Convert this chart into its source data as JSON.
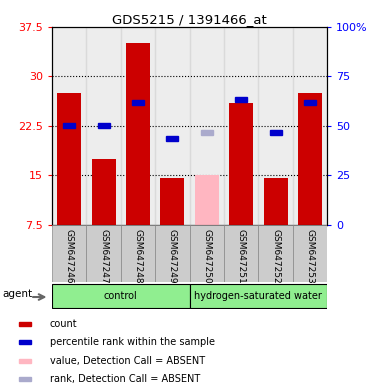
{
  "title": "GDS5215 / 1391466_at",
  "samples": [
    "GSM647246",
    "GSM647247",
    "GSM647248",
    "GSM647249",
    "GSM647250",
    "GSM647251",
    "GSM647252",
    "GSM647253"
  ],
  "bar_values": [
    27.5,
    17.5,
    35.0,
    14.5,
    null,
    26.0,
    14.5,
    27.5
  ],
  "bar_absent_values": [
    null,
    null,
    null,
    null,
    15.0,
    null,
    null,
    null
  ],
  "rank_values_left": [
    22.5,
    22.5,
    26.0,
    20.5,
    null,
    26.5,
    21.5,
    26.0
  ],
  "rank_absent_left": [
    null,
    null,
    null,
    null,
    21.5,
    null,
    null,
    null
  ],
  "bar_color": "#CC0000",
  "bar_absent_color": "#FFB6C1",
  "rank_color": "#0000CC",
  "rank_absent_color": "#AAAACC",
  "ylim_left": [
    7.5,
    37.5
  ],
  "ylim_right": [
    0,
    100
  ],
  "yticks_left": [
    7.5,
    15.0,
    22.5,
    30.0,
    37.5
  ],
  "yticks_right": [
    0,
    25,
    50,
    75,
    100
  ],
  "ytick_labels_left": [
    "7.5",
    "15",
    "22.5",
    "30",
    "37.5"
  ],
  "ytick_labels_right": [
    "0",
    "25",
    "50",
    "75",
    "100%"
  ],
  "hlines": [
    15.0,
    22.5,
    30.0
  ],
  "group_labels": [
    "control",
    "hydrogen-saturated water"
  ],
  "group_ranges": [
    [
      0,
      4
    ],
    [
      4,
      8
    ]
  ],
  "group_color": "#90EE90",
  "agent_label": "agent",
  "legend_items": [
    {
      "label": "count",
      "color": "#CC0000"
    },
    {
      "label": "percentile rank within the sample",
      "color": "#0000CC"
    },
    {
      "label": "value, Detection Call = ABSENT",
      "color": "#FFB6C1"
    },
    {
      "label": "rank, Detection Call = ABSENT",
      "color": "#AAAACC"
    }
  ],
  "col_bg_color": "#CCCCCC",
  "plot_bg_color": "#FFFFFF"
}
